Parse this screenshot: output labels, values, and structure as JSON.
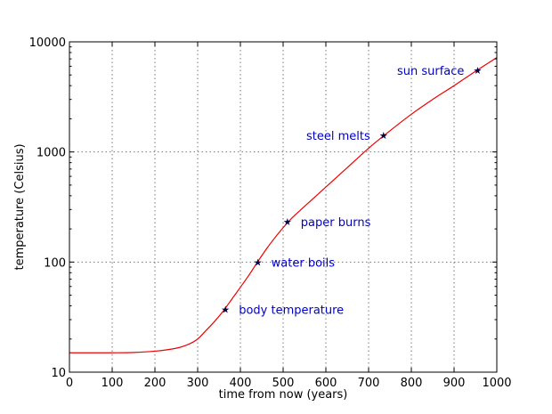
{
  "chart_data": {
    "type": "line",
    "xlabel": "time from now (years)",
    "ylabel": "temperature (Celsius)",
    "xlim": [
      0,
      1000
    ],
    "ylim": [
      10,
      10000
    ],
    "yscale": "log",
    "grid": true,
    "x_ticks": [
      "0",
      "100",
      "200",
      "300",
      "400",
      "500",
      "600",
      "700",
      "800",
      "900",
      "1000"
    ],
    "y_ticks": [
      "10",
      "100",
      "1000",
      "10000"
    ],
    "series": [
      {
        "color": "#ee0000",
        "x": [
          0,
          50,
          100,
          150,
          200,
          250,
          280,
          300,
          320,
          340,
          360,
          380,
          400,
          420,
          440,
          460,
          480,
          500,
          520,
          550,
          600,
          650,
          700,
          740,
          800,
          850,
          900,
          950,
          1000
        ],
        "y": [
          15,
          15,
          15,
          15.1,
          15.5,
          16.5,
          18,
          20,
          24,
          29,
          36,
          46,
          59,
          76,
          100,
          130,
          165,
          205,
          250,
          320,
          480,
          720,
          1080,
          1450,
          2200,
          3000,
          4000,
          5400,
          7200
        ]
      }
    ],
    "annotations": [
      {
        "label": "body temperature",
        "x": 365,
        "y": 37,
        "anchor": "right"
      },
      {
        "label": "water boils",
        "x": 441,
        "y": 100,
        "anchor": "right"
      },
      {
        "label": "paper burns",
        "x": 510,
        "y": 232,
        "anchor": "right"
      },
      {
        "label": "steel melts",
        "x": 735,
        "y": 1420,
        "anchor": "left"
      },
      {
        "label": "sun surface",
        "x": 955,
        "y": 5500,
        "anchor": "left"
      }
    ]
  }
}
